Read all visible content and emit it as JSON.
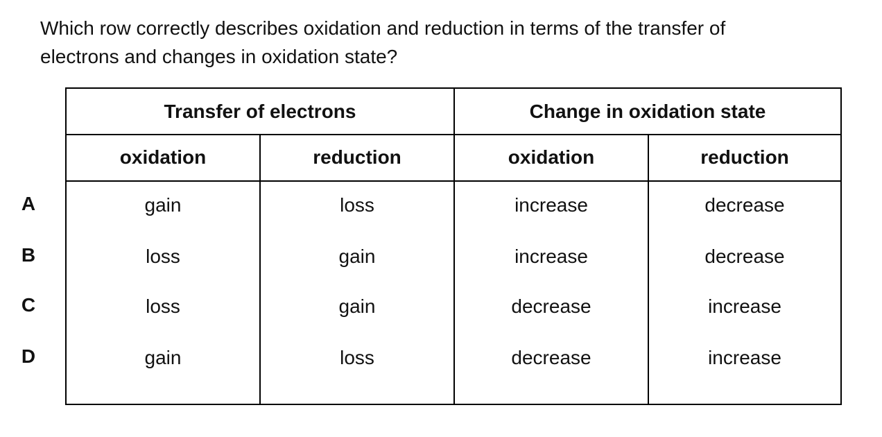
{
  "question": {
    "line1": "Which row correctly describes oxidation and reduction in terms of the transfer of",
    "line2": "electrons and changes in oxidation state?"
  },
  "table": {
    "group_headers": [
      "Transfer of electrons",
      "Change in oxidation state"
    ],
    "sub_headers": [
      "oxidation",
      "reduction",
      "oxidation",
      "reduction"
    ],
    "rows": [
      {
        "label": "A",
        "cells": [
          "gain",
          "loss",
          "increase",
          "decrease"
        ]
      },
      {
        "label": "B",
        "cells": [
          "loss",
          "gain",
          "increase",
          "decrease"
        ]
      },
      {
        "label": "C",
        "cells": [
          "loss",
          "gain",
          "decrease",
          "increase"
        ]
      },
      {
        "label": "D",
        "cells": [
          "gain",
          "loss",
          "decrease",
          "increase"
        ]
      }
    ]
  }
}
